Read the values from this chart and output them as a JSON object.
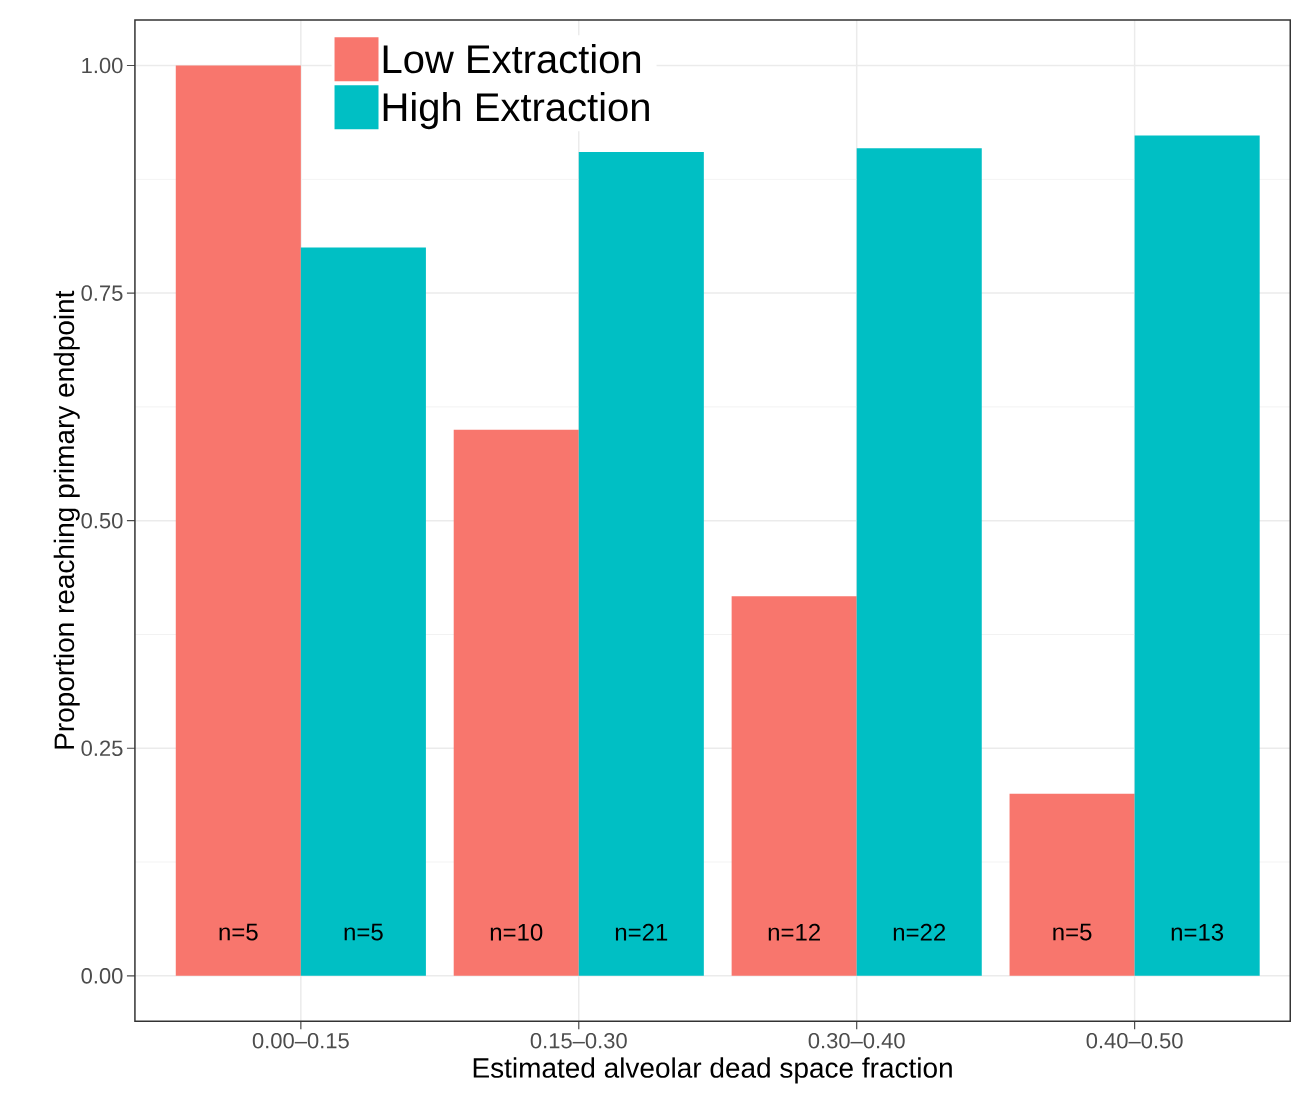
{
  "chart_data": {
    "type": "bar",
    "xlabel": "Estimated alveolar dead space fraction",
    "ylabel": "Proportion reaching primary endpoint",
    "categories": [
      "0.00–0.15",
      "0.15–0.30",
      "0.30–0.40",
      "0.40–0.50"
    ],
    "series": [
      {
        "name": "Low Extraction",
        "color": "#f8766d",
        "values": [
          1.0,
          0.6,
          0.417,
          0.2
        ]
      },
      {
        "name": "High Extraction",
        "color": "#00bfc4",
        "values": [
          0.8,
          0.905,
          0.909,
          0.923
        ]
      }
    ],
    "annotations": [
      "n=5",
      "n=5",
      "n=10",
      "n=21",
      "n=12",
      "n=22",
      "n=5",
      "n=13"
    ],
    "ylim": [
      -0.05,
      1.05
    ],
    "yticks": [
      {
        "value": 0,
        "label": "0.00"
      },
      {
        "value": 0.25,
        "label": "0.25"
      },
      {
        "value": 0.5,
        "label": "0.50"
      },
      {
        "value": 0.75,
        "label": "0.75"
      },
      {
        "value": 1,
        "label": "1.00"
      }
    ],
    "grid": true,
    "legend": "top left"
  }
}
